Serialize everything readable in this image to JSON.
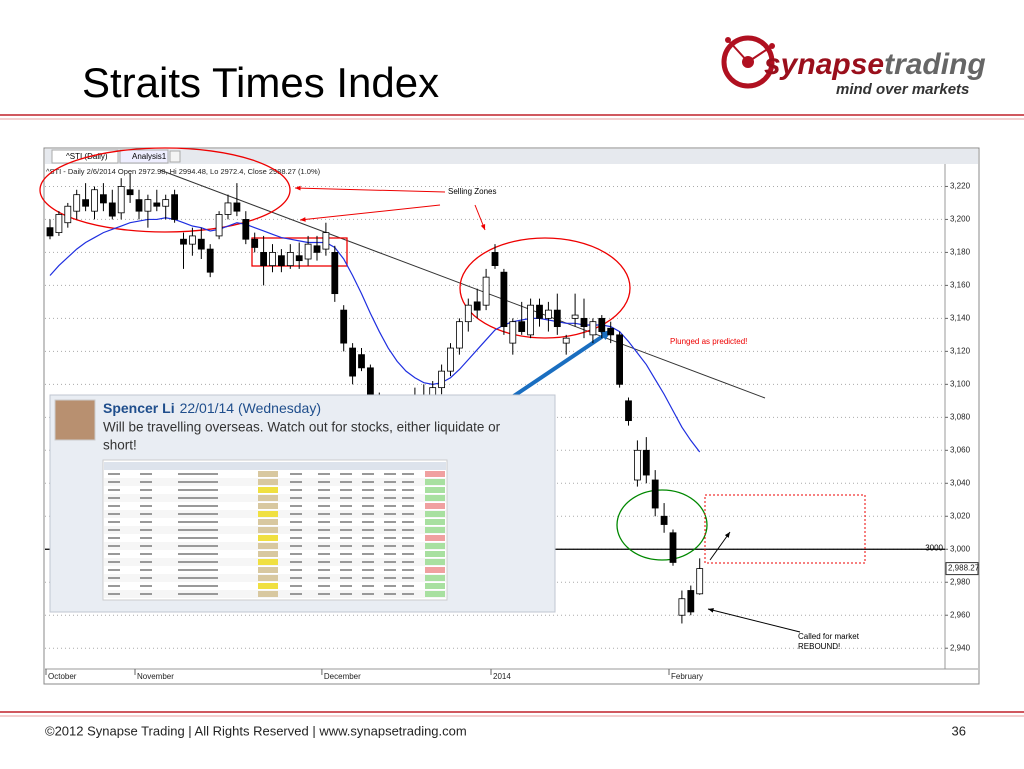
{
  "header": {
    "title": "Straits Times Index",
    "logo": {
      "part1": "synapse",
      "part2": "trading",
      "tagline": "mind over markets"
    }
  },
  "chart_data": {
    "type": "candlestick",
    "tabs": [
      "^STI (Daily)",
      "Analysis1"
    ],
    "info": "^STI - Daily 2/6/2014 Open 2972.98, Hi 2994.48, Lo 2972.4, Close 2988.27 (1.0%)",
    "categories": [
      "October",
      null,
      null,
      null,
      null,
      null,
      null,
      null,
      null,
      null,
      "November",
      null,
      null,
      null,
      null,
      null,
      null,
      null,
      null,
      null,
      null,
      null,
      null,
      null,
      null,
      null,
      null,
      null,
      null,
      null,
      null,
      "December",
      null,
      null,
      null,
      null,
      null,
      null,
      null,
      null,
      null,
      null,
      null,
      null,
      null,
      null,
      null,
      null,
      null,
      null,
      "2014",
      null,
      null,
      null,
      null,
      null,
      null,
      null,
      null,
      null,
      null,
      null,
      null,
      null,
      null,
      null,
      null,
      null,
      null,
      null,
      "February",
      null,
      null,
      null
    ],
    "open": [
      3195,
      3192,
      3198,
      3205,
      3212,
      3205,
      3215,
      3210,
      3204,
      3218,
      3212,
      3205,
      3210,
      3208,
      3215,
      3188,
      3185,
      3188,
      3182,
      3190,
      3203,
      3210,
      3200,
      3188,
      3180,
      3172,
      3178,
      3172,
      3178,
      3176,
      3184,
      3182,
      3180,
      3145,
      3122,
      3118,
      3110,
      3090,
      3080,
      3085,
      3082,
      3088,
      3092,
      3088,
      3098,
      3108,
      3122,
      3138,
      3150,
      3148,
      3180,
      3168,
      3125,
      3138,
      3130,
      3148,
      3140,
      3145,
      3125,
      3140,
      3140,
      3130,
      3140,
      3134,
      3130,
      3090,
      3042,
      3060,
      3042,
      3020,
      3010,
      2960,
      2975,
      2972.98
    ],
    "high": [
      3200,
      3205,
      3210,
      3218,
      3222,
      3220,
      3222,
      3218,
      3225,
      3228,
      3218,
      3215,
      3218,
      3215,
      3218,
      3192,
      3195,
      3195,
      3185,
      3205,
      3215,
      3222,
      3205,
      3192,
      3190,
      3185,
      3182,
      3185,
      3186,
      3190,
      3190,
      3198,
      3184,
      3148,
      3125,
      3122,
      3112,
      3095,
      3088,
      3092,
      3090,
      3098,
      3100,
      3102,
      3112,
      3125,
      3140,
      3152,
      3158,
      3170,
      3185,
      3170,
      3140,
      3150,
      3152,
      3152,
      3150,
      3155,
      3130,
      3155,
      3152,
      3140,
      3142,
      3138,
      3132,
      3092,
      3066,
      3068,
      3048,
      3028,
      3012,
      2975,
      2978,
      2994.48
    ],
    "low": [
      3188,
      3190,
      3195,
      3200,
      3205,
      3200,
      3205,
      3200,
      3200,
      3210,
      3200,
      3195,
      3205,
      3200,
      3198,
      3170,
      3178,
      3176,
      3165,
      3188,
      3200,
      3202,
      3185,
      3180,
      3160,
      3168,
      3168,
      3170,
      3170,
      3172,
      3175,
      3178,
      3150,
      3120,
      3100,
      3108,
      3085,
      3075,
      3070,
      3078,
      3072,
      3082,
      3085,
      3085,
      3094,
      3105,
      3118,
      3132,
      3140,
      3145,
      3170,
      3130,
      3118,
      3130,
      3128,
      3135,
      3132,
      3130,
      3118,
      3135,
      3128,
      3125,
      3128,
      3125,
      3098,
      3075,
      3038,
      3040,
      3020,
      3010,
      2990,
      2955,
      2960,
      2972.4
    ],
    "close": [
      3190,
      3203,
      3208,
      3215,
      3208,
      3218,
      3210,
      3202,
      3220,
      3215,
      3205,
      3212,
      3208,
      3212,
      3200,
      3185,
      3190,
      3182,
      3168,
      3203,
      3210,
      3205,
      3188,
      3183,
      3172,
      3180,
      3172,
      3180,
      3175,
      3185,
      3180,
      3192,
      3155,
      3125,
      3105,
      3110,
      3090,
      3080,
      3085,
      3082,
      3088,
      3092,
      3088,
      3098,
      3108,
      3122,
      3138,
      3148,
      3145,
      3165,
      3172,
      3135,
      3138,
      3132,
      3148,
      3140,
      3145,
      3135,
      3128,
      3142,
      3135,
      3138,
      3132,
      3130,
      3100,
      3078,
      3060,
      3045,
      3025,
      3015,
      2992,
      2970,
      2962,
      2988.27
    ],
    "ma": {
      "color": "#1f2fe0",
      "values": [
        3166,
        3172,
        3177,
        3182,
        3186,
        3189,
        3192,
        3194,
        3196,
        3198,
        3199,
        3200,
        3200,
        3201,
        3200,
        3198,
        3196,
        3195,
        3193,
        3194,
        3196,
        3198,
        3197,
        3195,
        3193,
        3191,
        3189,
        3188,
        3187,
        3186,
        3186,
        3186,
        3183,
        3176,
        3166,
        3155,
        3143,
        3132,
        3122,
        3114,
        3108,
        3104,
        3101,
        3100,
        3101,
        3104,
        3109,
        3115,
        3121,
        3127,
        3133,
        3136,
        3138,
        3139,
        3140,
        3140,
        3139,
        3138,
        3137,
        3137,
        3136,
        3136,
        3136,
        3135,
        3132,
        3126,
        3119,
        3112,
        3103,
        3094,
        3084,
        3074,
        3066,
        3059
      ]
    },
    "ylim": [
      2928,
      3233
    ],
    "yticks": [
      {
        "value": 2940,
        "label": "2,940"
      },
      {
        "value": 2960,
        "label": "2,960"
      },
      {
        "value": 2980,
        "label": "2,980"
      },
      {
        "value": 3000,
        "label": "3,000"
      },
      {
        "value": 3020,
        "label": "3,020"
      },
      {
        "value": 3040,
        "label": "3,040"
      },
      {
        "value": 3060,
        "label": "3,060"
      },
      {
        "value": 3080,
        "label": "3,080"
      },
      {
        "value": 3100,
        "label": "3,100"
      },
      {
        "value": 3120,
        "label": "3,120"
      },
      {
        "value": 3140,
        "label": "3,140"
      },
      {
        "value": 3160,
        "label": "3,160"
      },
      {
        "value": 3180,
        "label": "3,180"
      },
      {
        "value": 3200,
        "label": "3,200"
      },
      {
        "value": 3220,
        "label": "3,220"
      }
    ],
    "grid": true,
    "level": 3000,
    "last_price": {
      "value": 2988.27,
      "label": "2,988.27"
    },
    "annotations": [
      "Selling Zones",
      "Plunged as predicted!",
      "Called for market",
      "REBOUND!"
    ]
  },
  "comment": {
    "author": "Spencer Li",
    "date": "22/01/14 (Wednesday)",
    "lines": [
      "Will be travelling overseas. Watch out for stocks, either liquidate or",
      "short!"
    ]
  },
  "footer": {
    "text": "©2012 Synapse Trading | All Rights Reserved | www.synapsetrading.com",
    "page": "36"
  }
}
